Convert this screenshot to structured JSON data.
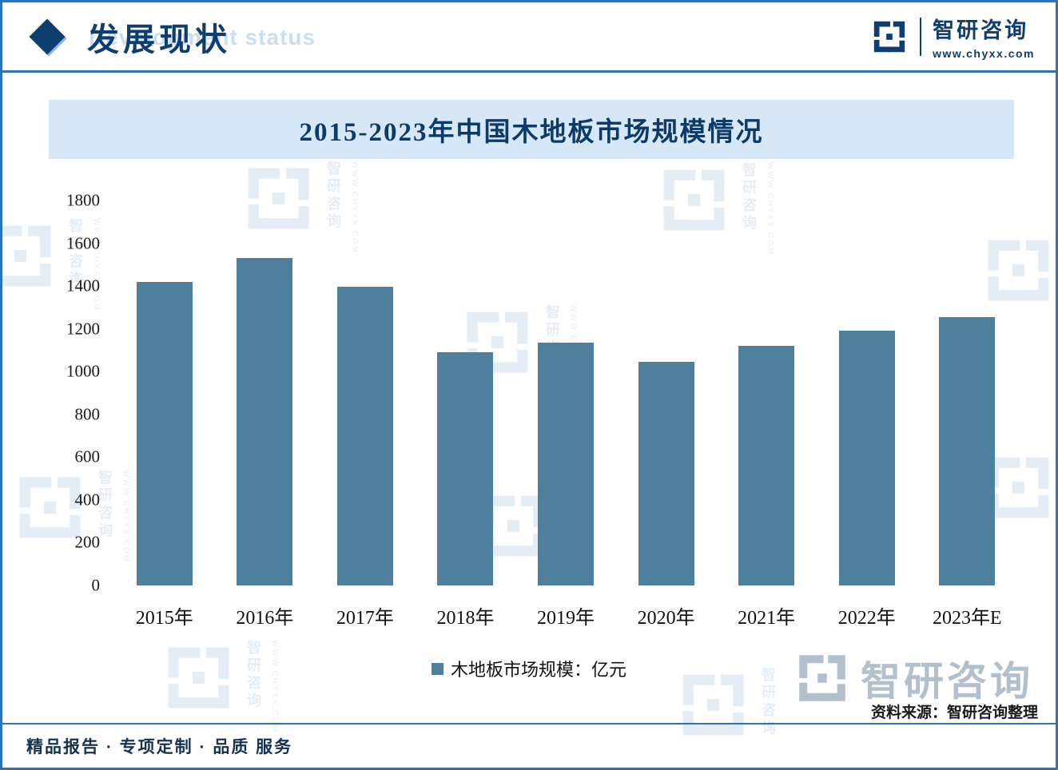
{
  "header": {
    "title": "发展现状",
    "title_watermark": "Development status",
    "brand": {
      "name": "智研咨询",
      "site": "www.chyxx.com"
    }
  },
  "chart_data": {
    "type": "bar",
    "title": "2015-2023年中国木地板市场规模情况",
    "categories": [
      "2015年",
      "2016年",
      "2017年",
      "2018年",
      "2019年",
      "2020年",
      "2021年",
      "2022年",
      "2023年E"
    ],
    "values": [
      1420,
      1530,
      1395,
      1090,
      1135,
      1045,
      1120,
      1190,
      1255
    ],
    "series_name": "木地板市场规模：亿元",
    "unit": "亿元",
    "ylim": [
      0,
      1800
    ],
    "ytick_step": 200,
    "bar_color": "#4e7f9d",
    "grid": false,
    "legend_position": "bottom"
  },
  "footer": {
    "services": "精品报告 · 专项定制 · 品质 服务",
    "source": "资料来源：智研咨询整理"
  },
  "watermark": {
    "brand": "智研咨询",
    "site": "WWW.CHYXX.COM"
  }
}
